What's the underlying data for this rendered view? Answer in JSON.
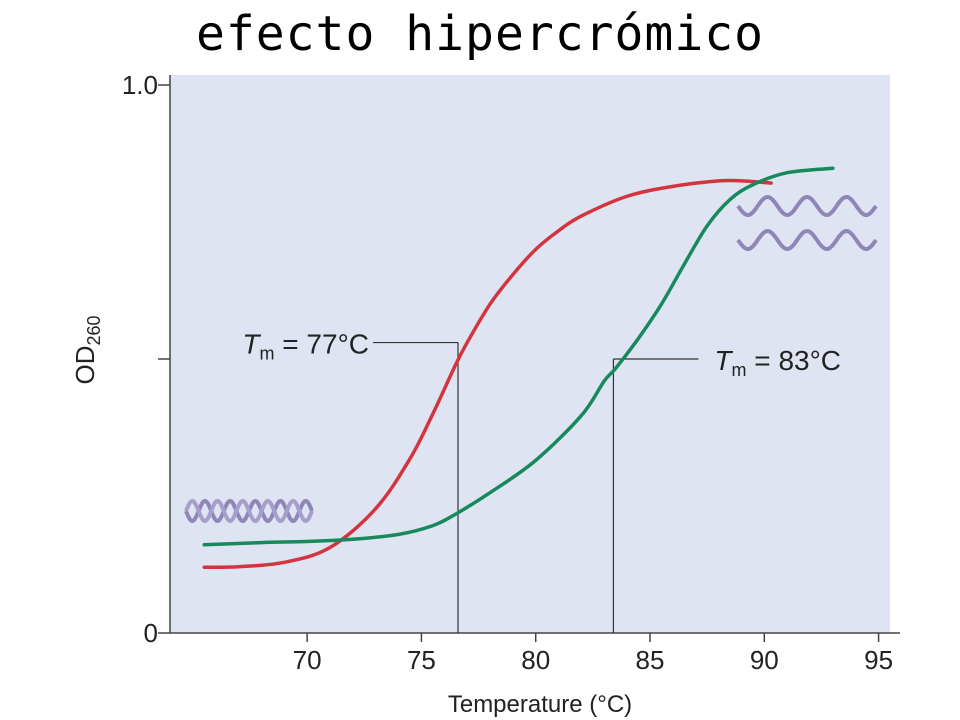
{
  "title": "efecto hipercrómico",
  "chart_data": {
    "type": "line",
    "xlabel": "Temperature (°C)",
    "ylabel_main": "OD",
    "ylabel_sub": "260",
    "xlim": [
      64,
      95.5
    ],
    "ylim": [
      0,
      1.0
    ],
    "x_ticks": [
      70,
      75,
      80,
      85,
      90,
      95
    ],
    "y_tick_labels": [
      {
        "value": 1.0,
        "label": "1.0"
      },
      {
        "value": 0.5,
        "label": ""
      },
      {
        "value": 0,
        "label": "0"
      }
    ],
    "grid": false,
    "series": [
      {
        "color": "#d3353f",
        "points": [
          [
            65.5,
            0.12
          ],
          [
            67,
            0.121
          ],
          [
            69,
            0.129
          ],
          [
            71,
            0.156
          ],
          [
            73,
            0.227
          ],
          [
            74.5,
            0.318
          ],
          [
            75.5,
            0.4
          ],
          [
            76.5,
            0.49
          ],
          [
            77,
            0.53
          ],
          [
            78,
            0.6
          ],
          [
            79,
            0.654
          ],
          [
            80,
            0.7
          ],
          [
            81,
            0.734
          ],
          [
            82,
            0.761
          ],
          [
            84,
            0.797
          ],
          [
            86,
            0.815
          ],
          [
            88,
            0.825
          ],
          [
            89,
            0.825
          ],
          [
            90,
            0.822
          ],
          [
            90.3,
            0.821
          ]
        ]
      },
      {
        "color": "#17895b",
        "points": [
          [
            65.5,
            0.161
          ],
          [
            68,
            0.165
          ],
          [
            70,
            0.167
          ],
          [
            72,
            0.171
          ],
          [
            74,
            0.18
          ],
          [
            75.5,
            0.196
          ],
          [
            76.5,
            0.217
          ],
          [
            78,
            0.256
          ],
          [
            80,
            0.315
          ],
          [
            82,
            0.397
          ],
          [
            83,
            0.46
          ],
          [
            83.5,
            0.483
          ],
          [
            84.5,
            0.538
          ],
          [
            85.5,
            0.6
          ],
          [
            86.5,
            0.673
          ],
          [
            87.5,
            0.743
          ],
          [
            88.5,
            0.791
          ],
          [
            89.5,
            0.818
          ],
          [
            91,
            0.84
          ],
          [
            93,
            0.848
          ]
        ]
      }
    ],
    "annotations": [
      {
        "prefix": "T",
        "sub": "m",
        "suffix": " = 77°C",
        "x": 76.6,
        "y": 0.53
      },
      {
        "prefix": "T",
        "sub": "m",
        "suffix": " = 83°C",
        "x": 83.4,
        "y": 0.5
      }
    ],
    "icons": [
      "double-helix-icon",
      "separated-strands-icon"
    ]
  }
}
